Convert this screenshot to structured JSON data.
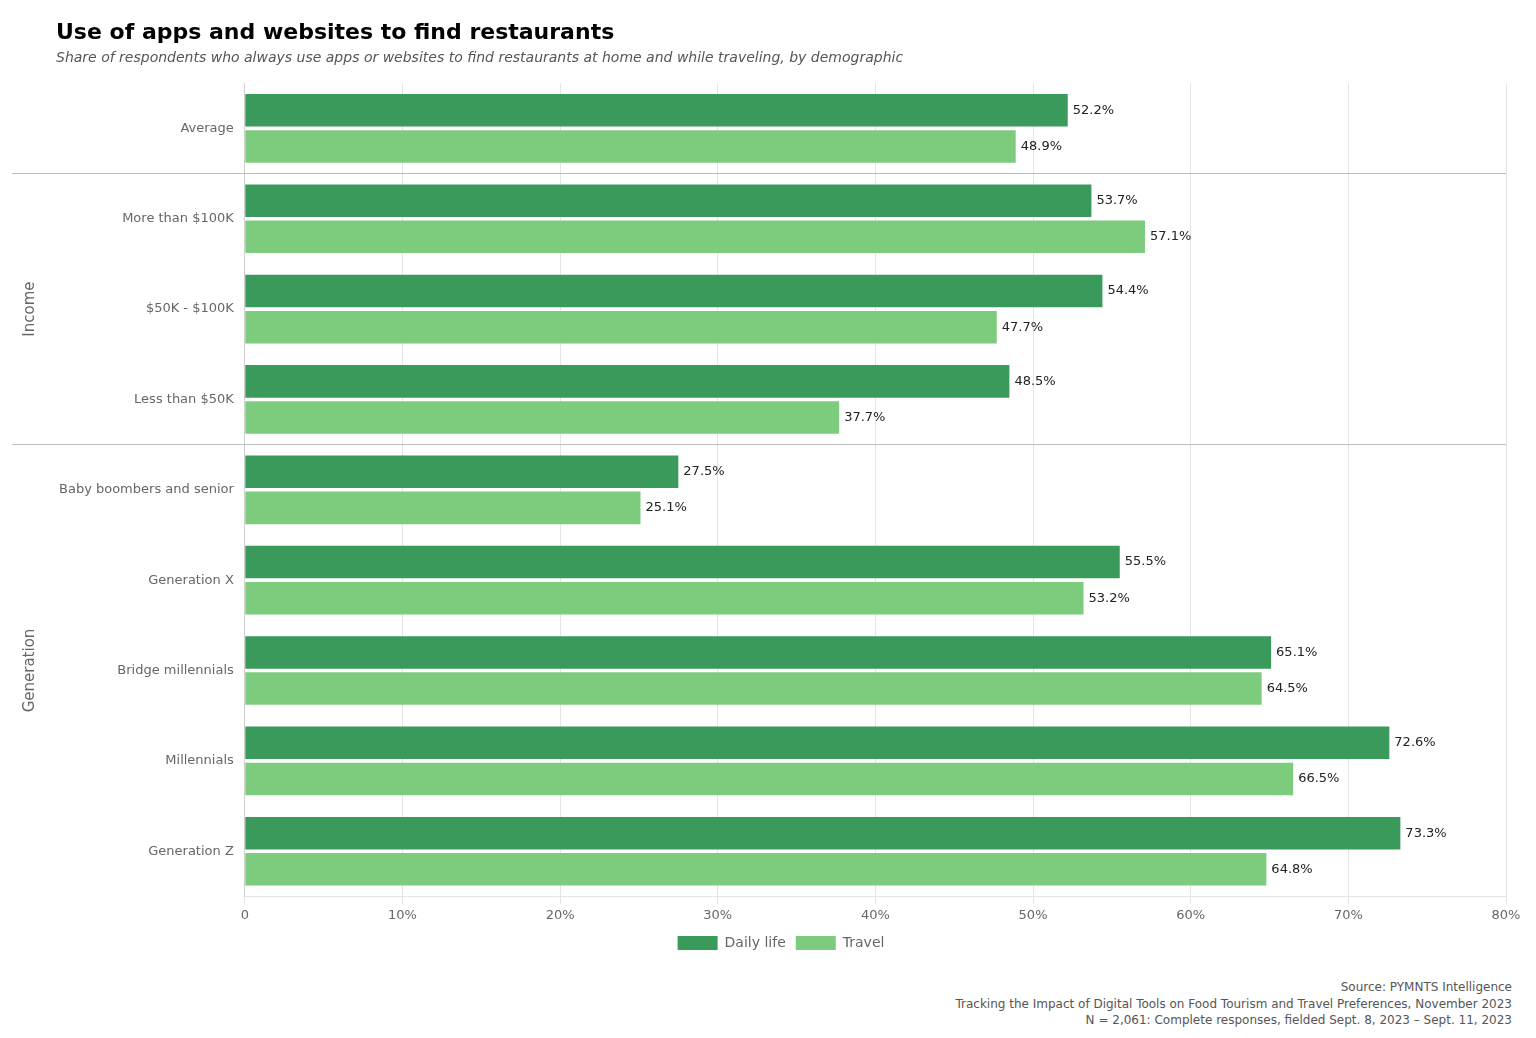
{
  "chart_data": {
    "type": "bar",
    "orientation": "horizontal",
    "title": "Use of apps and websites to find restaurants",
    "subtitle": "Share of respondents who always use apps or websites to find restaurants at home and while traveling, by demographic",
    "source": [
      "Source: PYMNTS Intelligence",
      "Tracking the Impact of Digital Tools on Food Tourism and Travel Preferences, November 2023",
      "N = 2,061: Complete responses, fielded Sept. 8, 2023 – Sept. 11, 2023"
    ],
    "categories": [
      "Average",
      "More than $100K",
      "$50K - $100K",
      "Less than $50K",
      "Baby boombers and senior",
      "Generation X",
      "Bridge millennials",
      "Millennials",
      "Generation Z"
    ],
    "sections": [
      {
        "label": "Income",
        "categories": [
          "More than $100K",
          "$50K - $100K",
          "Less than $50K"
        ]
      },
      {
        "label": "Generation",
        "categories": [
          "Baby boombers and senior",
          "Generation X",
          "Bridge millennials",
          "Millennials",
          "Generation Z"
        ]
      }
    ],
    "series": [
      {
        "name": "Daily life",
        "color": "#3a9a5c",
        "values": [
          52.2,
          53.7,
          54.4,
          48.5,
          27.5,
          55.5,
          65.1,
          72.6,
          73.3
        ],
        "value_labels": [
          "52.2%",
          "53.7%",
          "54.4%",
          "48.5%",
          "27.5%",
          "55.5%",
          "65.1%",
          "72.6%",
          "73.3%"
        ]
      },
      {
        "name": "Travel",
        "color": "#7dcc7d",
        "values": [
          48.9,
          57.1,
          47.7,
          37.7,
          25.1,
          53.2,
          64.5,
          66.5,
          64.8
        ],
        "value_labels": [
          "48.9%",
          "57.1%",
          "47.7%",
          "37.7%",
          "25.1%",
          "53.2%",
          "64.5%",
          "66.5%",
          "64.8%"
        ]
      }
    ],
    "xlim": [
      0,
      80
    ],
    "xticks": [
      0,
      {
        "value": 10,
        "label": "10%"
      },
      {
        "value": 20,
        "label": "20%"
      },
      {
        "value": 30,
        "label": "30%"
      },
      {
        "value": 40,
        "label": "40%"
      },
      {
        "value": 50,
        "label": "50%"
      },
      {
        "value": 60,
        "label": "60%"
      },
      {
        "value": 70,
        "label": "70%"
      },
      {
        "value": 80,
        "label": "80%"
      }
    ],
    "grid": true,
    "legend": "bottom",
    "data_labels": true
  }
}
